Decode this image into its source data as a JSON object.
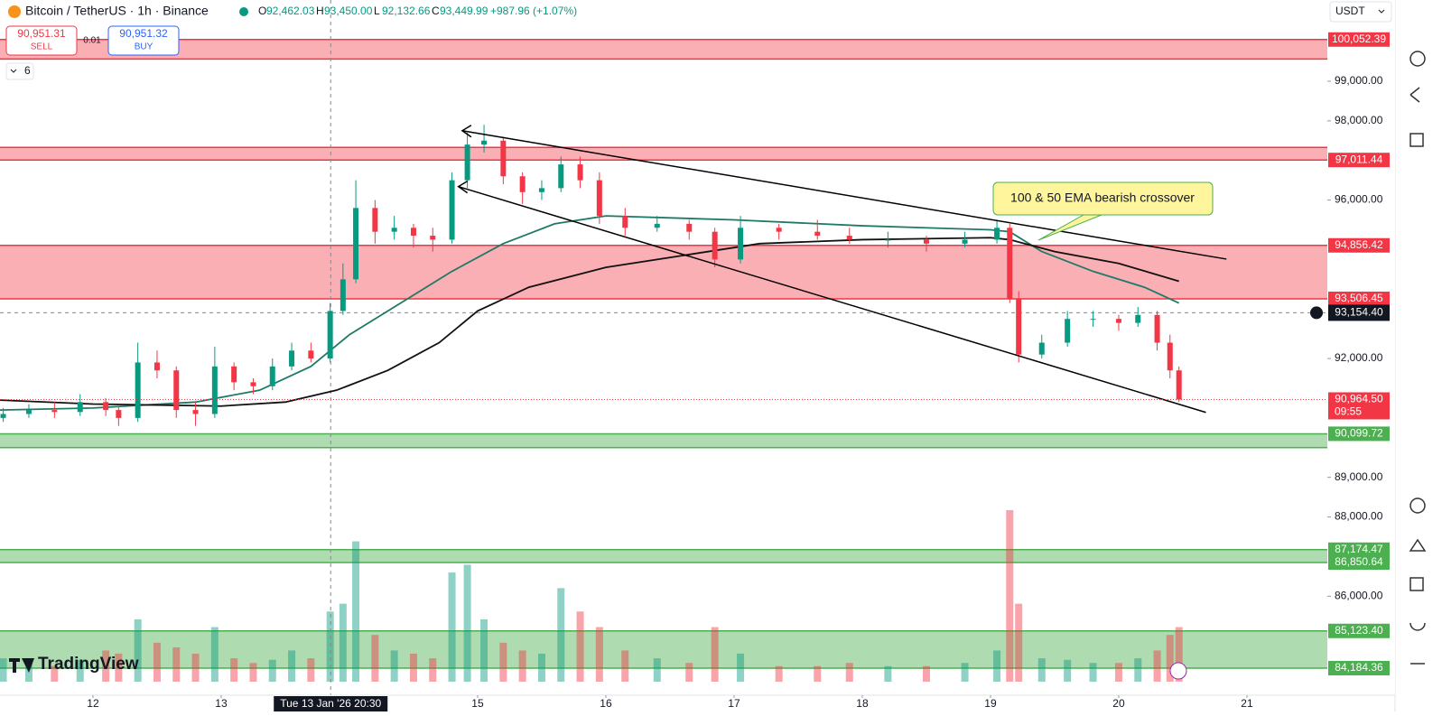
{
  "chart_data": {
    "type": "candlestick",
    "symbol": "Bitcoin / TetherUS · 1h · Binance",
    "ohlc": [
      {
        "label": "O",
        "value": "92,462.03"
      },
      {
        "label": "H",
        "value": "93,450.00"
      },
      {
        "label": "L",
        "value": "92,132.66"
      },
      {
        "label": "C",
        "value": "93,449.99"
      }
    ],
    "change": "+987.96 (+1.07%)",
    "sell": {
      "price": "90,951.31",
      "label": "SELL"
    },
    "buy": {
      "price": "90,951.32",
      "label": "BUY"
    },
    "spread": "0.01",
    "indicators_count": "6",
    "currency": "USDT",
    "brand": "TradingView",
    "annotation": "100 & 50 EMA bearish crossover",
    "up_color": "#089981",
    "down_color": "#f23645",
    "xlim": [
      11.275,
      21.627
    ],
    "xticks": [
      12,
      13,
      15,
      16,
      17,
      18,
      19,
      20,
      21
    ],
    "ylim": [
      83500,
      101050
    ],
    "yticks": [
      {
        "value": 99000,
        "label": "99,000.00"
      },
      {
        "value": 98000,
        "label": "98,000.00"
      },
      {
        "value": 96000,
        "label": "96,000.00"
      },
      {
        "value": 92000,
        "label": "92,000.00"
      },
      {
        "value": 89000,
        "label": "89,000.00"
      },
      {
        "value": 88000,
        "label": "88,000.00"
      },
      {
        "value": 86000,
        "label": "86,000.00"
      }
    ],
    "zones": [
      {
        "top": 100052.39,
        "top_label": "100,052.39",
        "bottom": 99560,
        "color": "red"
      },
      {
        "top": 97330,
        "bottom": 97011.44,
        "bottom_label": "97,011.44",
        "color": "red"
      },
      {
        "top": 94856.42,
        "top_label": "94,856.42",
        "bottom": 93506.45,
        "bottom_label": "93,506.45",
        "color": "red"
      },
      {
        "top": 90099.72,
        "top_label": "90,099.72",
        "bottom": 89750,
        "color": "green"
      },
      {
        "top": 87174.47,
        "top_label": "87,174.47",
        "bottom": 86850.64,
        "bottom_label": "86,850.64",
        "color": "green"
      },
      {
        "top": 85123.4,
        "top_label": "85,123.40",
        "bottom": 84184.36,
        "bottom_label": "84,184.36",
        "color": "green"
      }
    ],
    "last_price": {
      "value": 90964.5,
      "label": "90,964.50",
      "countdown": "09:55"
    },
    "crosshair": {
      "t": 13.854,
      "time_label": "Tue 13 Jan '26  20:30",
      "price": 93154.4,
      "price_label": "93,154.40"
    },
    "candles": {
      "t": [
        11.3,
        11.5,
        11.7,
        11.9,
        12.1,
        12.2,
        12.35,
        12.5,
        12.65,
        12.8,
        12.95,
        13.1,
        13.25,
        13.4,
        13.55,
        13.7,
        13.85,
        13.95,
        14.05,
        14.2,
        14.35,
        14.5,
        14.65,
        14.8,
        14.92,
        15.05,
        15.2,
        15.35,
        15.5,
        15.65,
        15.8,
        15.95,
        16.15,
        16.4,
        16.65,
        16.85,
        17.05,
        17.35,
        17.65,
        17.9,
        18.2,
        18.5,
        18.8,
        19.05,
        19.15,
        19.22,
        19.4,
        19.6,
        19.8,
        20.0,
        20.15,
        20.3,
        20.4,
        20.47
      ],
      "open": [
        90500,
        90600,
        90700,
        90650,
        90900,
        90700,
        90500,
        91900,
        91700,
        90700,
        90600,
        91800,
        91400,
        91300,
        91800,
        92200,
        92000,
        93200,
        94000,
        95800,
        95200,
        95300,
        95100,
        95000,
        96500,
        97400,
        97500,
        96600,
        96200,
        96300,
        96900,
        96500,
        95600,
        95300,
        95400,
        95200,
        94500,
        95300,
        95200,
        95100,
        95000,
        95000,
        94900,
        95000,
        95300,
        93500,
        92100,
        92400,
        93000,
        93000,
        92900,
        93100,
        92400,
        91700
      ],
      "high": [
        90750,
        90850,
        90900,
        91100,
        91000,
        90800,
        92400,
        92200,
        91800,
        90900,
        92300,
        91900,
        91500,
        92000,
        92400,
        92400,
        93400,
        94400,
        96500,
        96000,
        95600,
        95400,
        95300,
        96700,
        97700,
        97900,
        97600,
        96700,
        96500,
        97100,
        97100,
        96700,
        95800,
        95600,
        95500,
        95300,
        95600,
        95400,
        95500,
        95300,
        95200,
        95100,
        95200,
        95500,
        95400,
        93700,
        92600,
        93200,
        93200,
        93100,
        93300,
        93200,
        92600,
        91800
      ],
      "low": [
        90400,
        90500,
        90500,
        90550,
        90550,
        90300,
        90400,
        91500,
        90500,
        90300,
        90500,
        91200,
        91100,
        91200,
        91700,
        91900,
        91900,
        93100,
        93900,
        94900,
        95000,
        94800,
        94700,
        94900,
        96300,
        97200,
        96400,
        95900,
        96000,
        96200,
        96300,
        95400,
        95100,
        95200,
        95000,
        94300,
        94400,
        95000,
        95000,
        94900,
        94800,
        94700,
        94800,
        94900,
        93400,
        91900,
        92000,
        92300,
        92800,
        92700,
        92800,
        92200,
        91500,
        90900
      ],
      "close": [
        90600,
        90700,
        90650,
        90900,
        90700,
        90500,
        91900,
        91700,
        90700,
        90600,
        91800,
        91400,
        91300,
        91800,
        92200,
        92000,
        93200,
        94000,
        95800,
        95200,
        95300,
        95100,
        95000,
        96500,
        97400,
        97500,
        96600,
        96200,
        96300,
        96900,
        96500,
        95600,
        95300,
        95400,
        95200,
        94500,
        95300,
        95200,
        95100,
        95000,
        95000,
        94900,
        95000,
        95300,
        93500,
        92100,
        92400,
        93000,
        93000,
        92900,
        93100,
        92400,
        91700,
        90964.5
      ],
      "volume": [
        15,
        12,
        10,
        14,
        20,
        18,
        40,
        25,
        22,
        18,
        35,
        15,
        12,
        14,
        20,
        15,
        45,
        50,
        90,
        30,
        20,
        18,
        15,
        70,
        75,
        40,
        25,
        20,
        18,
        60,
        45,
        35,
        20,
        15,
        12,
        35,
        18,
        10,
        10,
        12,
        10,
        10,
        12,
        20,
        110,
        50,
        15,
        14,
        12,
        12,
        15,
        20,
        30,
        35
      ]
    },
    "series": [
      {
        "color": "#1e7a66",
        "x": [
          11.275,
          12,
          12.8,
          13.3,
          13.7,
          14.0,
          14.4,
          14.8,
          15.2,
          15.6,
          16.0,
          17.0,
          18.0,
          19.0,
          19.15,
          19.4,
          19.8,
          20.2,
          20.47
        ],
        "values": [
          90700,
          90750,
          90900,
          91200,
          91800,
          92600,
          93400,
          94200,
          94900,
          95400,
          95600,
          95500,
          95350,
          95250,
          95200,
          94700,
          94200,
          93800,
          93400
        ]
      },
      {
        "color": "#111111",
        "x": [
          11.275,
          12,
          13,
          13.5,
          13.9,
          14.3,
          14.7,
          15.0,
          15.4,
          16.0,
          16.6,
          17.2,
          18.0,
          19.0,
          19.15,
          19.5,
          20.0,
          20.47
        ],
        "values": [
          90950,
          90850,
          90800,
          90900,
          91200,
          91700,
          92400,
          93200,
          93800,
          94300,
          94600,
          94900,
          95000,
          95050,
          95000,
          94700,
          94400,
          93950
        ]
      }
    ],
    "trendlines": [
      {
        "x": [
          14.88,
          20.84
        ],
        "values": [
          97750,
          94510
        ]
      },
      {
        "x": [
          14.85,
          20.68
        ],
        "values": [
          96340,
          90640
        ]
      }
    ]
  }
}
